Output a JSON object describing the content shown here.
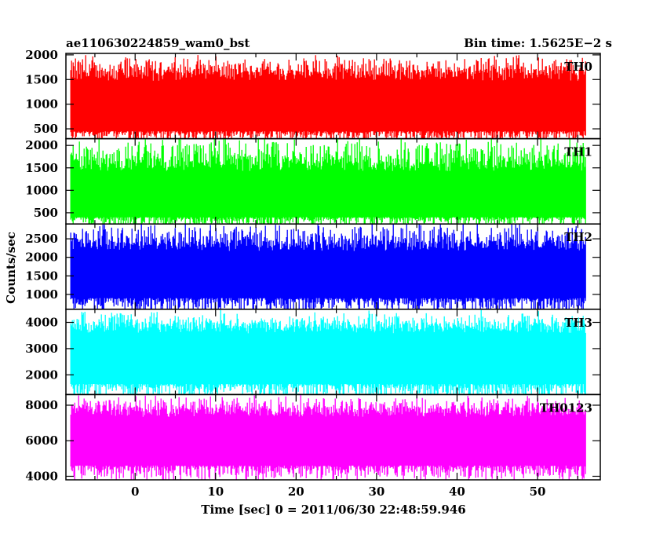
{
  "header": {
    "left_title": "ae110630224859_wam0_bst",
    "right_title": "Bin time: 1.5625E−2 s"
  },
  "chart_data": {
    "type": "line",
    "title": "ae110630224859_wam0_bst",
    "subtitle": "Bin time: 1.5625E−2 s",
    "xlabel": "Time [sec] 0 = 2011/06/30 22:48:59.946",
    "ylabel": "Counts/sec",
    "xlim": [
      -8.6,
      57.8
    ],
    "x_data_range": [
      -8.0,
      56.0
    ],
    "x_ticks": [
      0,
      10,
      20,
      30,
      40,
      50
    ],
    "grid": false,
    "legend": "in-panel labels, top-right",
    "panels": [
      {
        "name": "TH0",
        "color": "#ff0000",
        "ylim": [
          300,
          2030
        ],
        "y_ticks": [
          500,
          1000,
          1500,
          2000
        ],
        "band": {
          "min": 230,
          "low": 450,
          "mean": 1050,
          "high": 1700,
          "max": 2040
        }
      },
      {
        "name": "TH1",
        "color": "#00ff00",
        "ylim": [
          250,
          2150
        ],
        "y_ticks": [
          500,
          1000,
          1500,
          2000
        ],
        "band": {
          "min": 200,
          "low": 400,
          "mean": 1000,
          "high": 1650,
          "max": 2250
        }
      },
      {
        "name": "TH2",
        "color": "#0000ff",
        "ylim": [
          600,
          2900
        ],
        "y_ticks": [
          1000,
          1500,
          2000,
          2500
        ],
        "band": {
          "min": 450,
          "low": 900,
          "mean": 1650,
          "high": 2450,
          "max": 3000
        }
      },
      {
        "name": "TH3",
        "color": "#00ffff",
        "ylim": [
          1250,
          4500
        ],
        "y_ticks": [
          2000,
          3000,
          4000
        ],
        "band": {
          "min": 1050,
          "low": 1650,
          "mean": 2800,
          "high": 4000,
          "max": 4500
        }
      },
      {
        "name": "TH0123",
        "color": "#ff00ff",
        "ylim": [
          3800,
          8600
        ],
        "y_ticks": [
          4000,
          6000,
          8000
        ],
        "band": {
          "min": 3750,
          "low": 4600,
          "mean": 6300,
          "high": 7900,
          "max": 8650
        }
      }
    ]
  }
}
